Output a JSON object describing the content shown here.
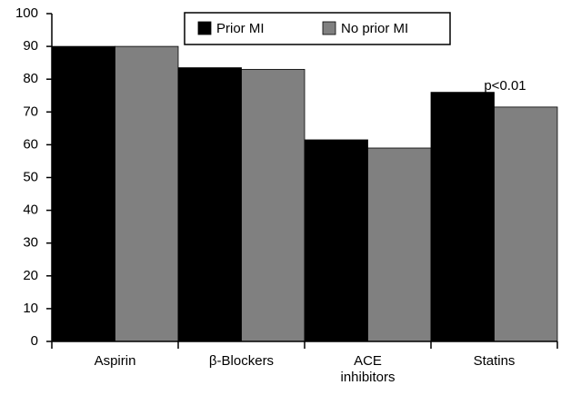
{
  "chart_data": {
    "type": "bar",
    "categories": [
      "Aspirin",
      "β-Blockers",
      "ACE inhibitors",
      "Statins"
    ],
    "series": [
      {
        "name": "Prior MI",
        "color": "#000000",
        "values": [
          90,
          83.5,
          61.5,
          76
        ]
      },
      {
        "name": "No prior MI",
        "color": "#808080",
        "values": [
          90,
          83,
          59,
          71.5
        ]
      }
    ],
    "ylim": [
      0,
      100
    ],
    "yticks": [
      0,
      10,
      20,
      30,
      40,
      50,
      60,
      70,
      80,
      90,
      100
    ],
    "annotation": "p<0.01",
    "legend": "top"
  }
}
